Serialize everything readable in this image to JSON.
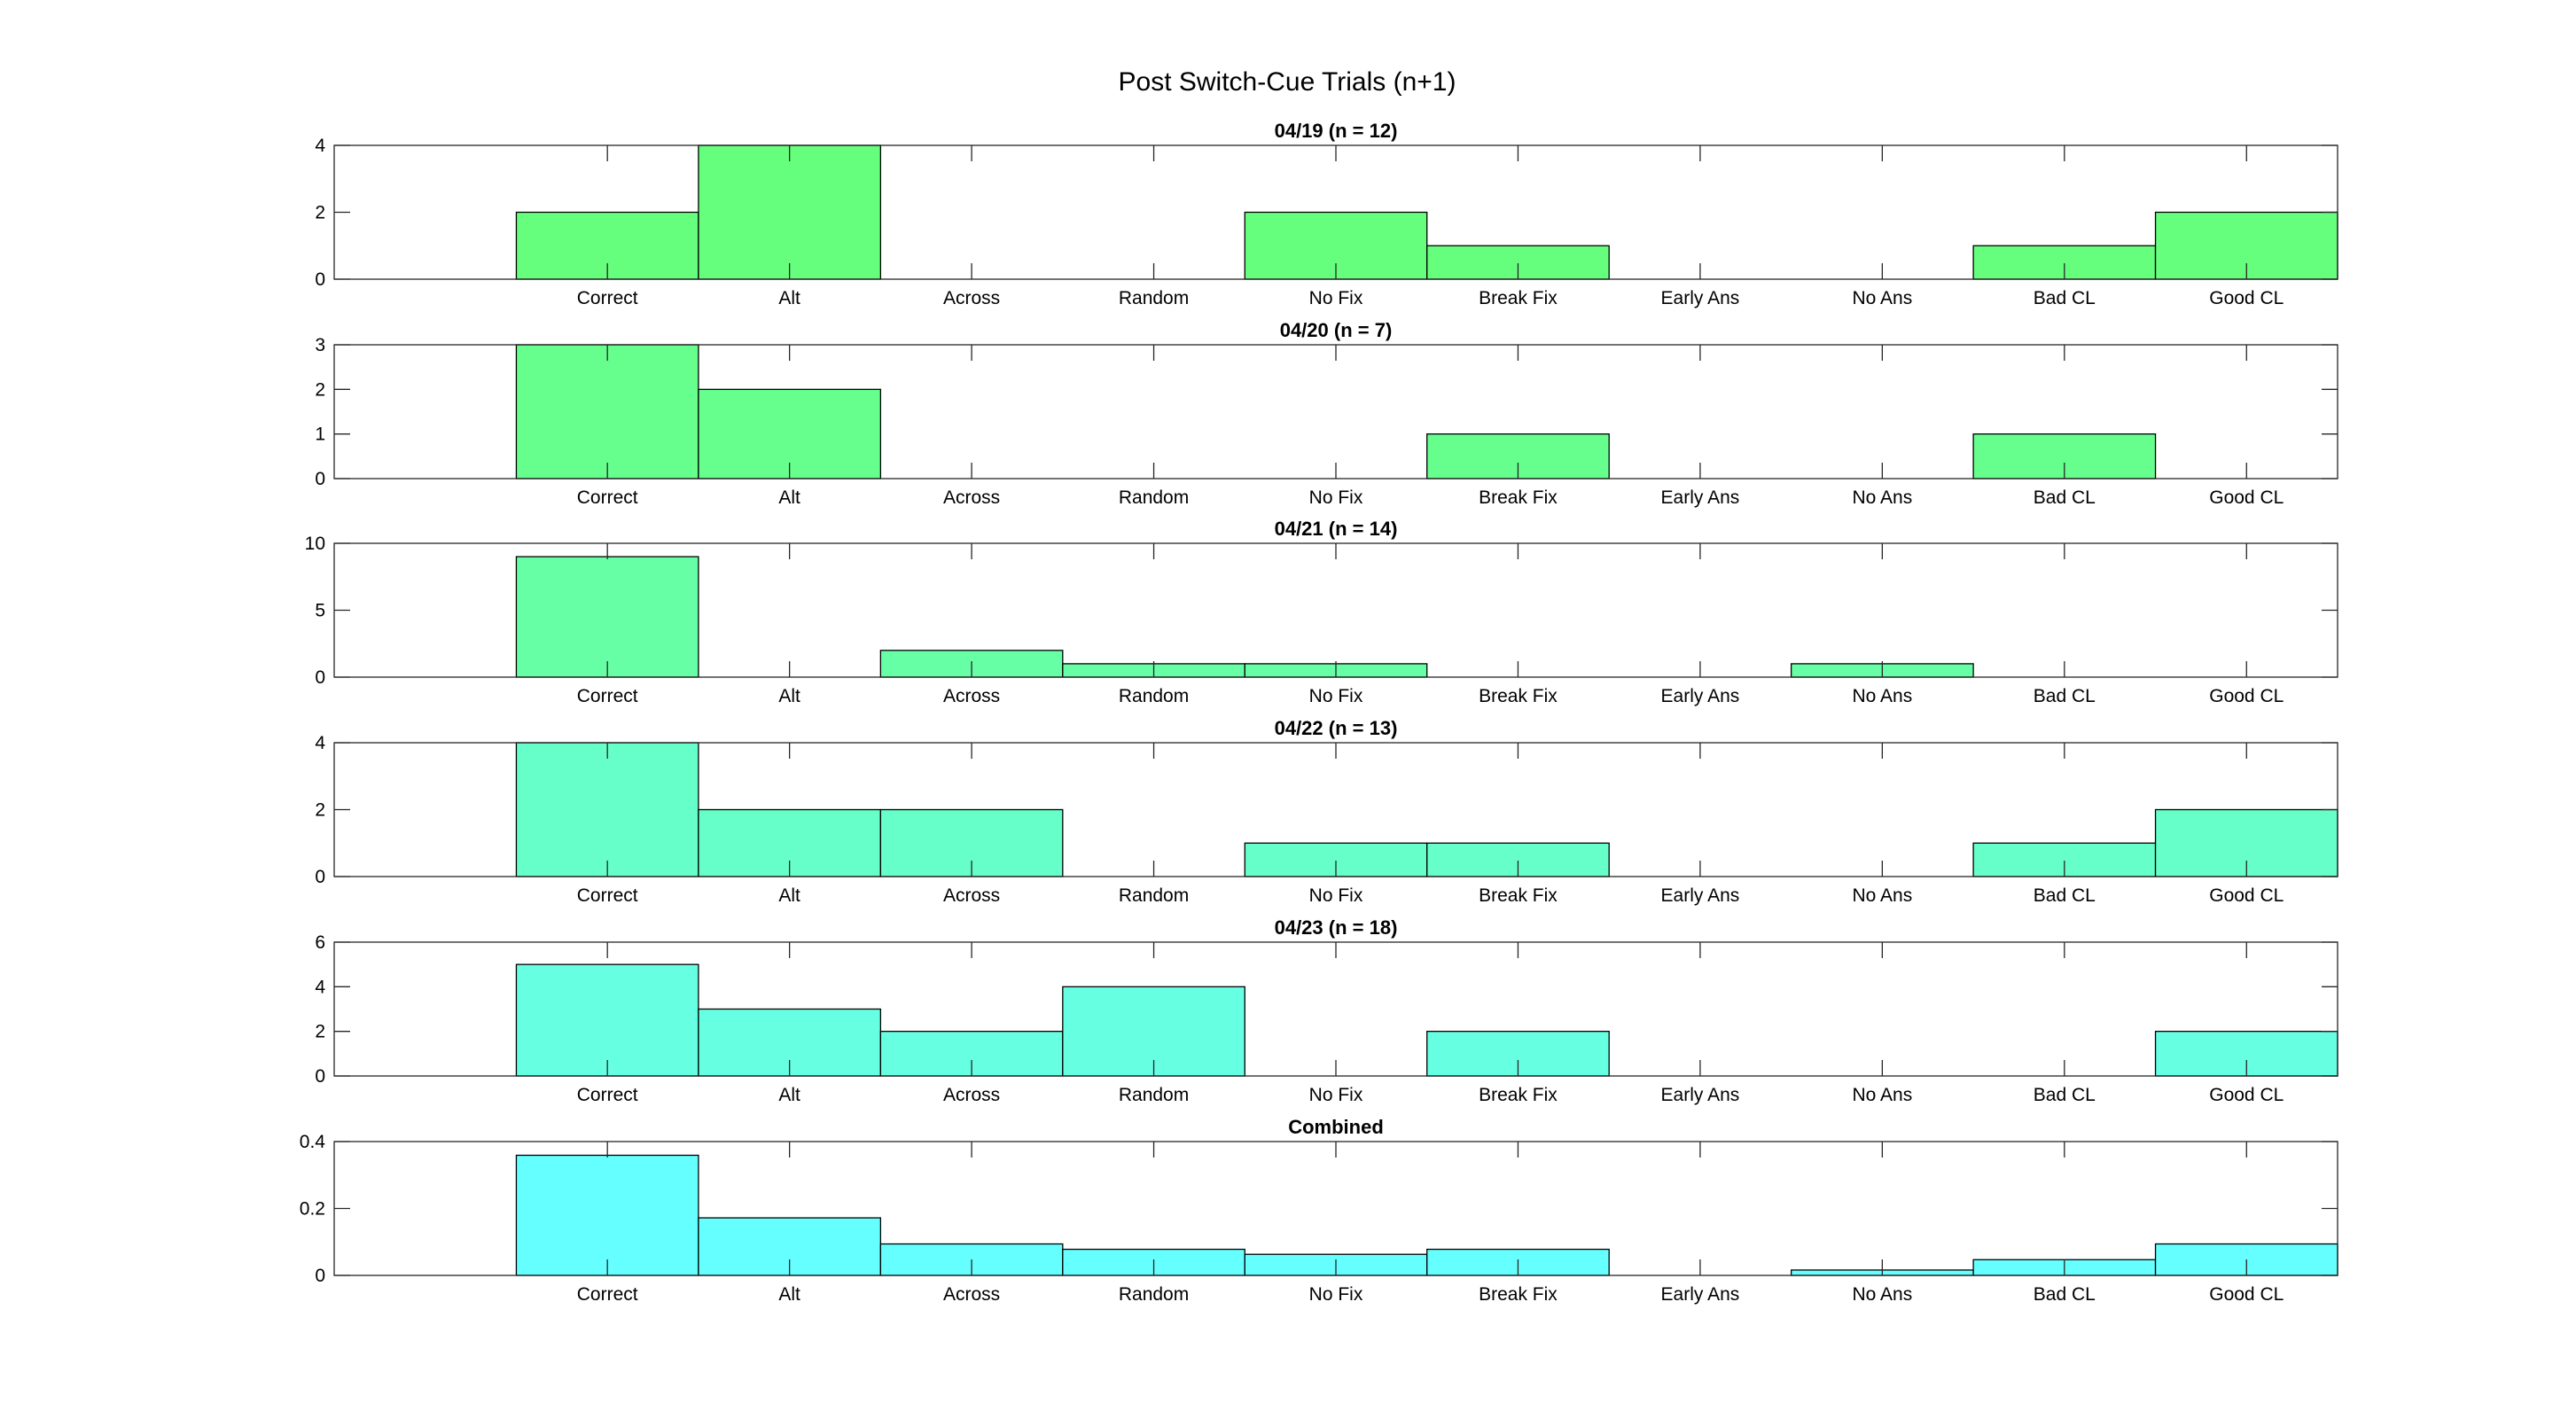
{
  "figure": {
    "title": "Post Switch-Cue Trials (n+1)"
  },
  "categories": [
    "Correct",
    "Alt",
    "Across",
    "Random",
    "No Fix",
    "Break Fix",
    "Early Ans",
    "No Ans",
    "Bad CL",
    "Good CL"
  ],
  "chart_data": [
    {
      "type": "bar",
      "title": "04/19 (n = 12)",
      "categories": [
        "Correct",
        "Alt",
        "Across",
        "Random",
        "No Fix",
        "Break Fix",
        "Early Ans",
        "No Ans",
        "Bad CL",
        "Good CL"
      ],
      "values": [
        2,
        4,
        0,
        0,
        2,
        1,
        0,
        0,
        1,
        2
      ],
      "ylim": [
        0,
        4
      ],
      "yticks": [
        0,
        2,
        4
      ],
      "color": "#66ff7d",
      "grid": false
    },
    {
      "type": "bar",
      "title": "04/20 (n = 7)",
      "categories": [
        "Correct",
        "Alt",
        "Across",
        "Random",
        "No Fix",
        "Break Fix",
        "Early Ans",
        "No Ans",
        "Bad CL",
        "Good CL"
      ],
      "values": [
        3,
        2,
        0,
        0,
        0,
        1,
        0,
        0,
        1,
        0
      ],
      "ylim": [
        0,
        3
      ],
      "yticks": [
        0,
        1,
        2,
        3
      ],
      "color": "#66ff8e",
      "grid": false
    },
    {
      "type": "bar",
      "title": "04/21 (n = 14)",
      "categories": [
        "Correct",
        "Alt",
        "Across",
        "Random",
        "No Fix",
        "Break Fix",
        "Early Ans",
        "No Ans",
        "Bad CL",
        "Good CL"
      ],
      "values": [
        9,
        0,
        2,
        1,
        1,
        0,
        0,
        1,
        0,
        0
      ],
      "ylim": [
        0,
        10
      ],
      "yticks": [
        0,
        5,
        10
      ],
      "color": "#66ffa6",
      "grid": false
    },
    {
      "type": "bar",
      "title": "04/22 (n = 13)",
      "categories": [
        "Correct",
        "Alt",
        "Across",
        "Random",
        "No Fix",
        "Break Fix",
        "Early Ans",
        "No Ans",
        "Bad CL",
        "Good CL"
      ],
      "values": [
        4,
        2,
        2,
        0,
        1,
        1,
        0,
        0,
        1,
        2
      ],
      "ylim": [
        0,
        4
      ],
      "yticks": [
        0,
        2,
        4
      ],
      "color": "#66ffc9",
      "grid": false
    },
    {
      "type": "bar",
      "title": "04/23 (n = 18)",
      "categories": [
        "Correct",
        "Alt",
        "Across",
        "Random",
        "No Fix",
        "Break Fix",
        "Early Ans",
        "No Ans",
        "Bad CL",
        "Good CL"
      ],
      "values": [
        5,
        3,
        2,
        4,
        0,
        2,
        0,
        0,
        0,
        2
      ],
      "ylim": [
        0,
        6
      ],
      "yticks": [
        0,
        2,
        4,
        6
      ],
      "color": "#66ffe2",
      "grid": false
    },
    {
      "type": "bar",
      "title": "Combined",
      "categories": [
        "Correct",
        "Alt",
        "Across",
        "Random",
        "No Fix",
        "Break Fix",
        "Early Ans",
        "No Ans",
        "Bad CL",
        "Good CL"
      ],
      "values": [
        0.359,
        0.172,
        0.094,
        0.078,
        0.063,
        0.078,
        0,
        0.016,
        0.047,
        0.094
      ],
      "ylim": [
        0,
        0.4
      ],
      "yticks": [
        0,
        0.2,
        0.4
      ],
      "color": "#66ffff",
      "grid": false
    }
  ]
}
